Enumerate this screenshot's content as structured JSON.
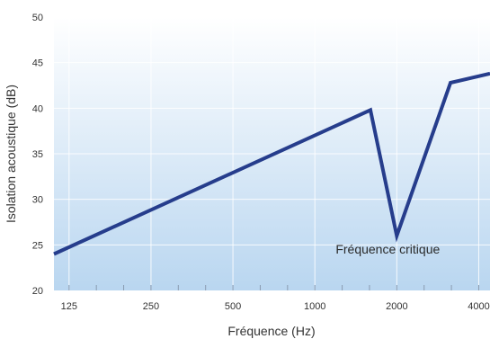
{
  "chart_data": {
    "type": "line",
    "title": "",
    "xlabel": "Fréquence (Hz)",
    "ylabel": "Isolation acoustique (dB)",
    "x_scale": "log",
    "x_ticks": [
      125,
      250,
      500,
      1000,
      2000,
      4000
    ],
    "x_tick_labels": [
      "125",
      "250",
      "500",
      "1000",
      "2000",
      "4000"
    ],
    "xlim": [
      110,
      4400
    ],
    "y_ticks": [
      20,
      25,
      30,
      35,
      40,
      45,
      50
    ],
    "y_tick_labels": [
      "20",
      "25",
      "30",
      "35",
      "40",
      "45",
      "50"
    ],
    "ylim": [
      20,
      50
    ],
    "grid": true,
    "x": [
      110,
      1600,
      2000,
      3150,
      4400
    ],
    "y": [
      24,
      39.8,
      26,
      42.8,
      43.8
    ],
    "annotation": {
      "text": "Fréquence critique",
      "x": 2000,
      "y": 26
    },
    "colors": {
      "line": "#263d8c",
      "background_top": "#ffffff",
      "background_bottom": "#b9d6f0",
      "grid": "#ffffff"
    }
  }
}
